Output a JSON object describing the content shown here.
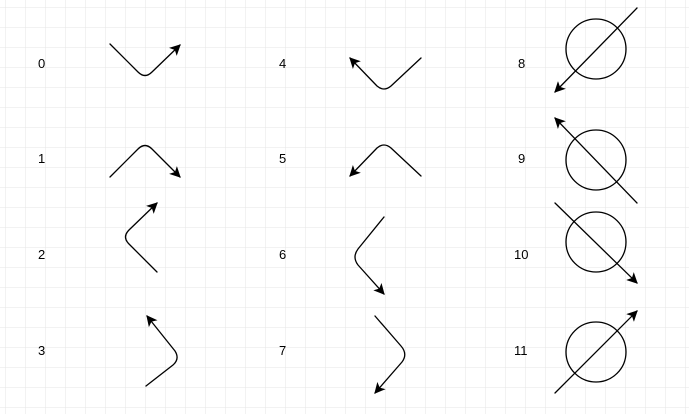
{
  "colors": {
    "background": "#ffffff",
    "grid": "#e6e6e6",
    "stroke": "#000000"
  },
  "items": [
    {
      "label": "0",
      "glyph": "bent-arrow-icon"
    },
    {
      "label": "1",
      "glyph": "bent-arrow-icon"
    },
    {
      "label": "2",
      "glyph": "bent-arrow-icon"
    },
    {
      "label": "3",
      "glyph": "bent-arrow-icon"
    },
    {
      "label": "4",
      "glyph": "bent-arrow-icon"
    },
    {
      "label": "5",
      "glyph": "bent-arrow-icon"
    },
    {
      "label": "6",
      "glyph": "bent-arrow-icon"
    },
    {
      "label": "7",
      "glyph": "bent-arrow-icon"
    },
    {
      "label": "8",
      "glyph": "circle-crossed-arrow-icon"
    },
    {
      "label": "9",
      "glyph": "circle-crossed-arrow-icon"
    },
    {
      "label": "10",
      "glyph": "circle-crossed-arrow-icon"
    },
    {
      "label": "11",
      "glyph": "circle-crossed-arrow-icon"
    }
  ]
}
